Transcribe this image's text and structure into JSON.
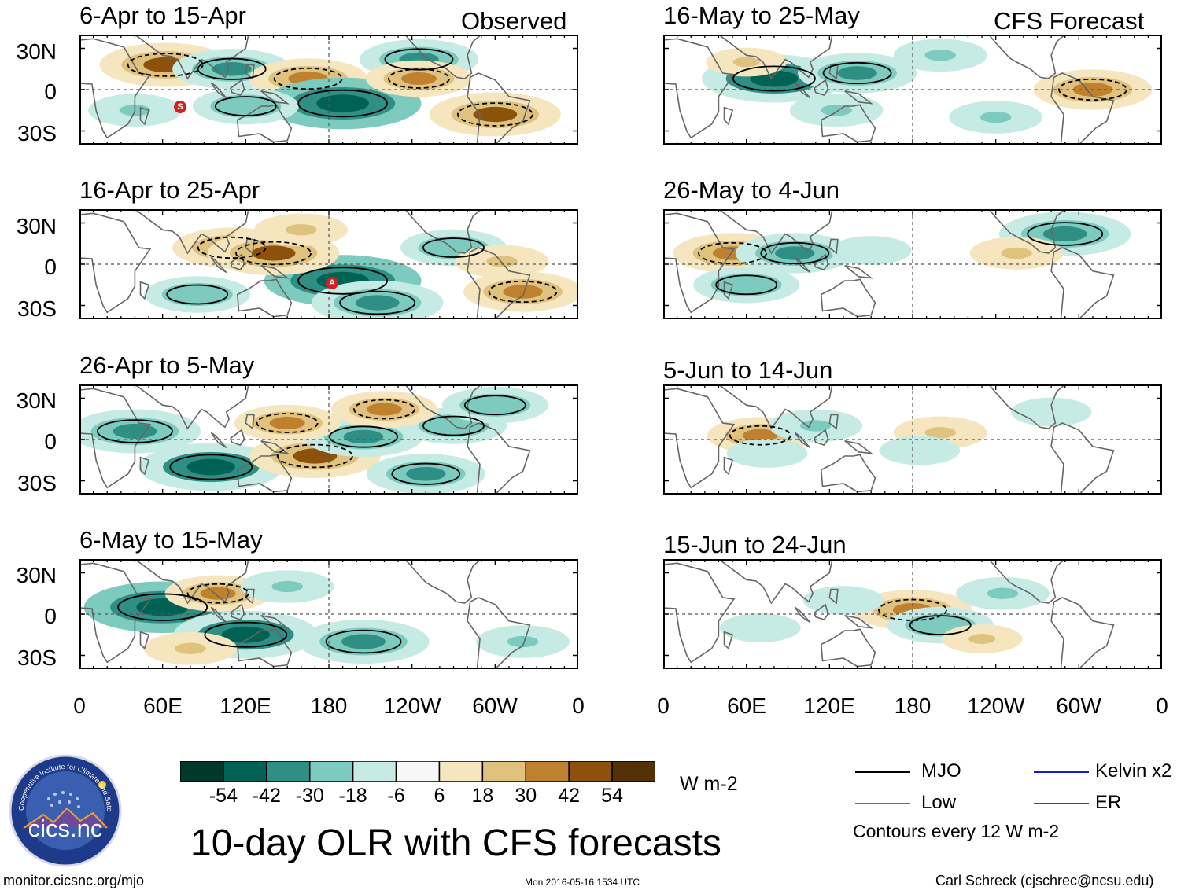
{
  "header": {
    "observed_label": "Observed",
    "forecast_label": "CFS Forecast"
  },
  "panels": {
    "observed": [
      {
        "title": "6-Apr to 15-Apr"
      },
      {
        "title": "16-Apr to 25-Apr"
      },
      {
        "title": "26-Apr to 5-May"
      },
      {
        "title": "6-May to 15-May"
      }
    ],
    "forecast": [
      {
        "title": "16-May to 25-May"
      },
      {
        "title": "26-May to 4-Jun"
      },
      {
        "title": "5-Jun to 14-Jun"
      },
      {
        "title": "15-Jun to 24-Jun"
      }
    ]
  },
  "axes": {
    "lat_ticks": [
      "30N",
      "0",
      "30S"
    ],
    "lon_ticks": [
      "0",
      "60E",
      "120E",
      "180",
      "120W",
      "60W",
      "0"
    ]
  },
  "storm_markers": {
    "panel1": "S",
    "panel2": "A"
  },
  "colorbar": {
    "unit": "W m-2",
    "tick_labels": [
      "-54",
      "-42",
      "-30",
      "-18",
      "-6",
      "6",
      "18",
      "30",
      "42",
      "54"
    ],
    "colors": [
      "#00392c",
      "#006254",
      "#2f8f84",
      "#7ccbbe",
      "#c6ebe4",
      "#f7f7f7",
      "#f6e6bf",
      "#dfc27d",
      "#bf812d",
      "#8c510a",
      "#543005"
    ]
  },
  "title": "10-day OLR with CFS forecasts",
  "legend": {
    "items": [
      {
        "label": "MJO",
        "color": "#000000"
      },
      {
        "label": "Kelvin x2",
        "color": "#1a1acc"
      },
      {
        "label": "Low",
        "color": "#a040e0"
      },
      {
        "label": "ER",
        "color": "#e01010"
      }
    ],
    "contour_note": "Contours every 12 W m-2"
  },
  "logo": {
    "text": "cics.nc",
    "ring_text": "Cooperative Institute for Climate and Satellites"
  },
  "footer": {
    "url": "monitor.cicsnc.org/mjo",
    "timestamp": "Mon 2016-05-16 1534 UTC",
    "author": "Carl Schreck (cjschrec@ncsu.edu)"
  },
  "chart_data": {
    "type": "heatmap",
    "title": "10-day OLR with CFS forecasts",
    "variable": "OLR anomaly",
    "units": "W m-2",
    "x_ticks": [
      "0",
      "60E",
      "120E",
      "180",
      "120W",
      "60W",
      "0"
    ],
    "y_ticks": [
      "30N",
      "0",
      "30S"
    ],
    "xlim": [
      0,
      360
    ],
    "ylim": [
      -40,
      40
    ],
    "color_levels": [
      -54,
      -42,
      -30,
      -18,
      -6,
      6,
      18,
      30,
      42,
      54
    ],
    "contour_interval": 12,
    "contours": [
      "MJO",
      "Kelvin x2",
      "Low",
      "ER"
    ],
    "panels": [
      {
        "period": "6-Apr to 15-Apr",
        "source": "Observed",
        "anomalies": [
          {
            "lon": 62,
            "lat": 18,
            "value": 42
          },
          {
            "lon": 110,
            "lat": 15,
            "value": -36
          },
          {
            "lon": 165,
            "lat": 8,
            "value": 36
          },
          {
            "lon": 190,
            "lat": -10,
            "value": -54
          },
          {
            "lon": 120,
            "lat": -12,
            "value": -30
          },
          {
            "lon": 300,
            "lat": -18,
            "value": 42
          },
          {
            "lon": 245,
            "lat": 22,
            "value": -36
          },
          {
            "lon": 245,
            "lat": 8,
            "value": 30
          },
          {
            "lon": 40,
            "lat": -15,
            "value": -24
          }
        ]
      },
      {
        "period": "16-Apr to 25-Apr",
        "source": "Observed",
        "anomalies": [
          {
            "lon": 190,
            "lat": -12,
            "value": -54
          },
          {
            "lon": 215,
            "lat": -28,
            "value": -42
          },
          {
            "lon": 270,
            "lat": 12,
            "value": -30
          },
          {
            "lon": 110,
            "lat": 12,
            "value": 36
          },
          {
            "lon": 140,
            "lat": 8,
            "value": 42
          },
          {
            "lon": 160,
            "lat": 25,
            "value": 24
          },
          {
            "lon": 85,
            "lat": -22,
            "value": -30
          },
          {
            "lon": 320,
            "lat": -20,
            "value": 36
          },
          {
            "lon": 305,
            "lat": 2,
            "value": 24
          }
        ]
      },
      {
        "period": "26-Apr to 5-May",
        "source": "Observed",
        "anomalies": [
          {
            "lon": 40,
            "lat": 6,
            "value": -42
          },
          {
            "lon": 95,
            "lat": -20,
            "value": -48
          },
          {
            "lon": 170,
            "lat": -12,
            "value": 42
          },
          {
            "lon": 205,
            "lat": 2,
            "value": -36
          },
          {
            "lon": 150,
            "lat": 12,
            "value": 30
          },
          {
            "lon": 270,
            "lat": 10,
            "value": -30
          },
          {
            "lon": 250,
            "lat": -25,
            "value": -36
          },
          {
            "lon": 220,
            "lat": 22,
            "value": 30
          },
          {
            "lon": 300,
            "lat": 25,
            "value": -30
          }
        ]
      },
      {
        "period": "6-May to 15-May",
        "source": "Observed",
        "anomalies": [
          {
            "lon": 60,
            "lat": 5,
            "value": -54
          },
          {
            "lon": 120,
            "lat": -15,
            "value": -48
          },
          {
            "lon": 205,
            "lat": -20,
            "value": -42
          },
          {
            "lon": 100,
            "lat": 15,
            "value": 30
          },
          {
            "lon": 150,
            "lat": 20,
            "value": -24
          },
          {
            "lon": 80,
            "lat": -25,
            "value": 24
          },
          {
            "lon": 320,
            "lat": -20,
            "value": -24
          }
        ]
      },
      {
        "period": "16-May to 25-May",
        "source": "CFS Forecast",
        "anomalies": [
          {
            "lon": 80,
            "lat": 8,
            "value": -48
          },
          {
            "lon": 140,
            "lat": 12,
            "value": -36
          },
          {
            "lon": 200,
            "lat": 25,
            "value": -24
          },
          {
            "lon": 310,
            "lat": 0,
            "value": 36
          },
          {
            "lon": 125,
            "lat": -15,
            "value": -24
          },
          {
            "lon": 240,
            "lat": -20,
            "value": -24
          },
          {
            "lon": 60,
            "lat": 20,
            "value": 18
          }
        ]
      },
      {
        "period": "26-May to 4-Jun",
        "source": "CFS Forecast",
        "anomalies": [
          {
            "lon": 50,
            "lat": 8,
            "value": 36
          },
          {
            "lon": 95,
            "lat": 8,
            "value": -36
          },
          {
            "lon": 290,
            "lat": 22,
            "value": -42
          },
          {
            "lon": 60,
            "lat": -15,
            "value": -30
          },
          {
            "lon": 150,
            "lat": 10,
            "value": -18
          },
          {
            "lon": 255,
            "lat": 8,
            "value": 24
          }
        ]
      },
      {
        "period": "5-Jun to 14-Jun",
        "source": "CFS Forecast",
        "anomalies": [
          {
            "lon": 70,
            "lat": 3,
            "value": 30
          },
          {
            "lon": 200,
            "lat": 5,
            "value": 24
          },
          {
            "lon": 75,
            "lat": -10,
            "value": -18
          },
          {
            "lon": 185,
            "lat": -8,
            "value": -18
          },
          {
            "lon": 110,
            "lat": 10,
            "value": -24
          },
          {
            "lon": 280,
            "lat": 20,
            "value": -18
          }
        ]
      },
      {
        "period": "15-Jun to 24-Jun",
        "source": "CFS Forecast",
        "anomalies": [
          {
            "lon": 180,
            "lat": 3,
            "value": 36
          },
          {
            "lon": 200,
            "lat": -8,
            "value": -30
          },
          {
            "lon": 245,
            "lat": 15,
            "value": -24
          },
          {
            "lon": 130,
            "lat": 10,
            "value": -18
          },
          {
            "lon": 70,
            "lat": -10,
            "value": -18
          },
          {
            "lon": 230,
            "lat": -18,
            "value": 18
          }
        ]
      }
    ]
  }
}
